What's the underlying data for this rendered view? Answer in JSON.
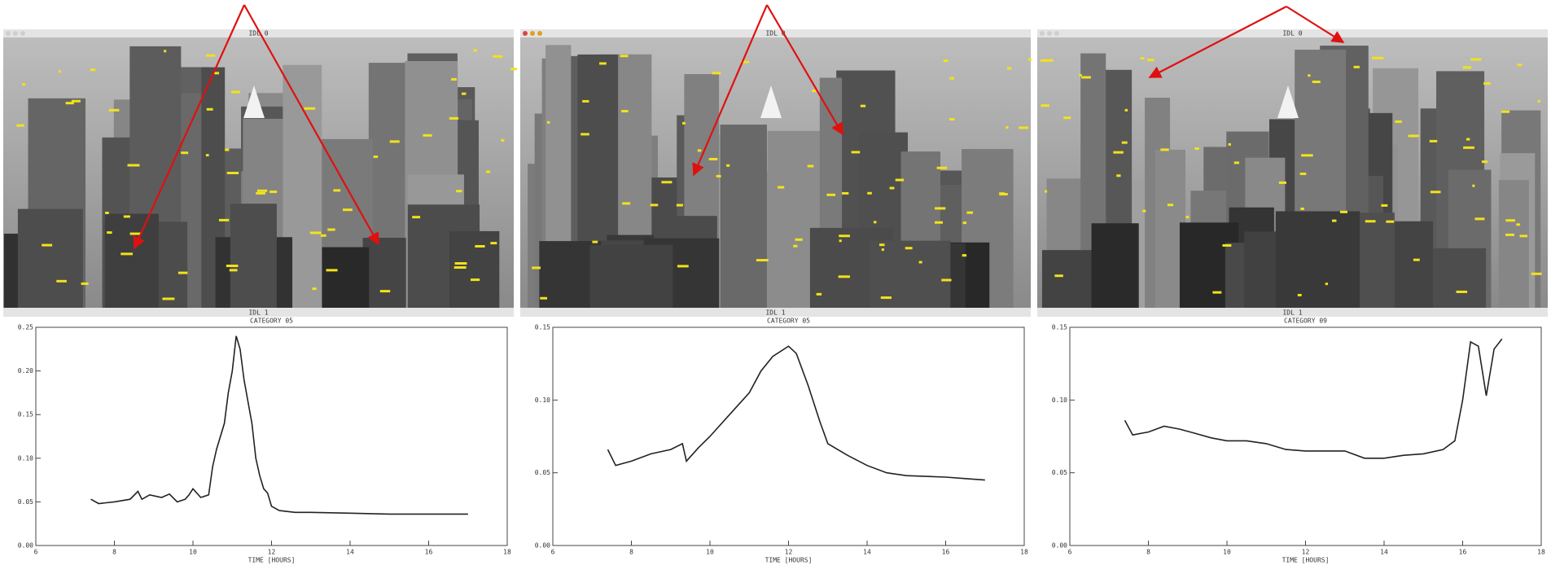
{
  "windows": [
    {
      "photo_title": "IDL 0",
      "chart_title": "IDL 1"
    },
    {
      "photo_title": "IDL 0",
      "chart_title": "IDL 1"
    },
    {
      "photo_title": "IDL 0",
      "chart_title": "IDL 1"
    }
  ],
  "chart_data": [
    {
      "type": "line",
      "title": "CATEGORY 05",
      "x_label": "TIME [HOURS]",
      "xlim": [
        6,
        18
      ],
      "xticks": [
        6,
        8,
        10,
        12,
        14,
        16,
        18
      ],
      "ylim": [
        0,
        0.25
      ],
      "yticks": [
        {
          "value": 0,
          "label": "0.00"
        },
        0.05,
        {
          "value": 0.1,
          "label": "0.10"
        },
        0.15,
        {
          "value": 0.2,
          "label": "0.20"
        },
        0.25
      ],
      "series": [
        {
          "color": "#222222",
          "x": [
            7.4,
            7.6,
            8.0,
            8.4,
            8.6,
            8.7,
            8.9,
            9.2,
            9.4,
            9.6,
            9.8,
            9.9,
            10.0,
            10.2,
            10.4,
            10.5,
            10.6,
            10.8,
            10.9,
            11.0,
            11.1,
            11.2,
            11.3,
            11.5,
            11.6,
            11.7,
            11.8,
            11.9,
            12.0,
            12.2,
            12.6,
            13.0,
            14.0,
            15.0,
            16.0,
            17.0
          ],
          "values": [
            0.053,
            0.048,
            0.05,
            0.053,
            0.062,
            0.053,
            0.058,
            0.055,
            0.059,
            0.05,
            0.053,
            0.058,
            0.065,
            0.055,
            0.058,
            0.09,
            0.11,
            0.14,
            0.175,
            0.2,
            0.24,
            0.225,
            0.19,
            0.14,
            0.1,
            0.08,
            0.065,
            0.06,
            0.045,
            0.04,
            0.038,
            0.038,
            0.037,
            0.036,
            0.036,
            0.036
          ]
        }
      ]
    },
    {
      "type": "line",
      "title": "CATEGORY 05",
      "x_label": "TIME [HOURS]",
      "xlim": [
        6,
        18
      ],
      "xticks": [
        6,
        8,
        10,
        12,
        14,
        16,
        18
      ],
      "ylim": [
        0,
        0.15
      ],
      "yticks": [
        {
          "value": 0,
          "label": "0.00"
        },
        0.05,
        {
          "value": 0.1,
          "label": "0.10"
        },
        0.15
      ],
      "series": [
        {
          "color": "#222222",
          "x": [
            7.4,
            7.6,
            8.0,
            8.5,
            9.0,
            9.3,
            9.4,
            9.7,
            10.0,
            10.5,
            11.0,
            11.3,
            11.6,
            12.0,
            12.2,
            12.5,
            12.8,
            13.0,
            13.5,
            14.0,
            14.5,
            15.0,
            16.0,
            16.5,
            17.0
          ],
          "values": [
            0.066,
            0.055,
            0.058,
            0.063,
            0.066,
            0.07,
            0.058,
            0.067,
            0.075,
            0.09,
            0.105,
            0.12,
            0.13,
            0.137,
            0.132,
            0.11,
            0.085,
            0.07,
            0.062,
            0.055,
            0.05,
            0.048,
            0.047,
            0.046,
            0.045
          ]
        }
      ]
    },
    {
      "type": "line",
      "title": "CATEGORY 09",
      "x_label": "TIME [HOURS]",
      "xlim": [
        6,
        18
      ],
      "xticks": [
        6,
        8,
        10,
        12,
        14,
        16,
        18
      ],
      "ylim": [
        0,
        0.15
      ],
      "yticks": [
        {
          "value": 0,
          "label": "0.00"
        },
        0.05,
        {
          "value": 0.1,
          "label": "0.10"
        },
        0.15
      ],
      "series": [
        {
          "color": "#222222",
          "x": [
            7.4,
            7.6,
            8.0,
            8.4,
            8.8,
            9.2,
            9.6,
            10.0,
            10.5,
            11.0,
            11.5,
            12.0,
            12.5,
            13.0,
            13.5,
            14.0,
            14.5,
            15.0,
            15.5,
            15.8,
            16.0,
            16.2,
            16.4,
            16.6,
            16.8,
            17.0
          ],
          "values": [
            0.086,
            0.076,
            0.078,
            0.082,
            0.08,
            0.077,
            0.074,
            0.072,
            0.072,
            0.07,
            0.066,
            0.065,
            0.065,
            0.065,
            0.06,
            0.06,
            0.062,
            0.063,
            0.066,
            0.072,
            0.1,
            0.14,
            0.137,
            0.103,
            0.135,
            0.142
          ]
        }
      ]
    }
  ]
}
